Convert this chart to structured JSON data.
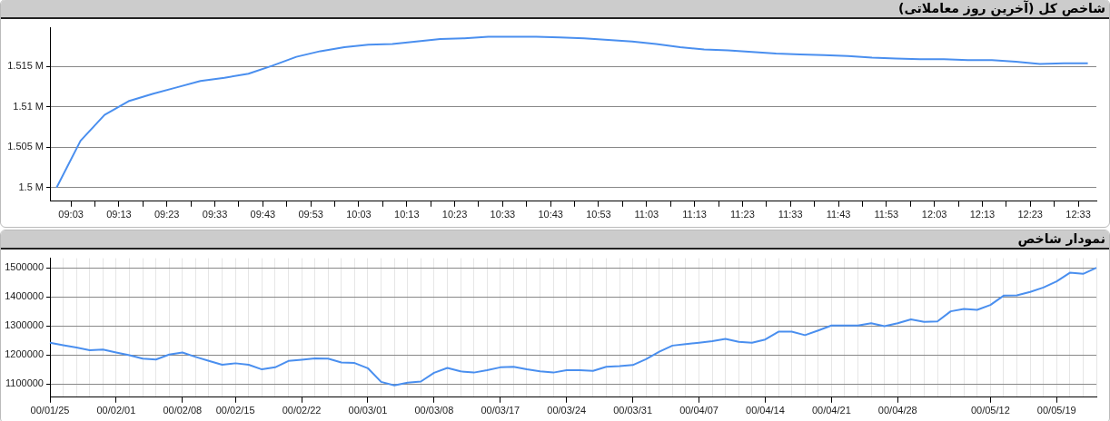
{
  "chart_data": [
    {
      "type": "line",
      "title": "شاخص کل (آخرین روز معاملاتی)",
      "grid": "y",
      "legend": false,
      "x": [
        9,
        9.0833,
        9.1667,
        9.25,
        9.3333,
        9.4167,
        9.5,
        9.5833,
        9.6667,
        9.75,
        9.8333,
        9.9167,
        10,
        10.0833,
        10.1667,
        10.25,
        10.3333,
        10.4167,
        10.5,
        10.5833,
        10.6667,
        10.75,
        10.8333,
        10.9167,
        11,
        11.0833,
        11.1667,
        11.25,
        11.3333,
        11.4167,
        11.5,
        11.5833,
        11.6667,
        11.75,
        11.8333,
        11.9167,
        12,
        12.0833,
        12.1667,
        12.25,
        12.3333,
        12.4167,
        12.5,
        12.5833
      ],
      "series": [
        {
          "color": "#4a8fef",
          "values": [
            1500000,
            1505800,
            1509000,
            1510700,
            1511600,
            1512400,
            1513200,
            1513600,
            1514100,
            1515100,
            1516200,
            1516900,
            1517400,
            1517700,
            1517800,
            1518100,
            1518400,
            1518500,
            1518700,
            1518700,
            1518700,
            1518600,
            1518500,
            1518300,
            1518100,
            1517800,
            1517400,
            1517100,
            1517000,
            1516800,
            1516600,
            1516500,
            1516400,
            1516300,
            1516100,
            1516000,
            1515900,
            1515900,
            1515800,
            1515800,
            1515600,
            1515300,
            1515400,
            1515400
          ]
        }
      ],
      "xlim": [
        8.977,
        12.613
      ],
      "xticks": [
        {
          "value": 9.05,
          "label": "09:03"
        },
        {
          "value": 9.1333,
          "label": null
        },
        {
          "value": 9.2167,
          "label": "09:13"
        },
        {
          "value": 9.3,
          "label": null
        },
        {
          "value": 9.3833,
          "label": "09:23"
        },
        {
          "value": 9.4667,
          "label": null
        },
        {
          "value": 9.55,
          "label": "09:33"
        },
        {
          "value": 9.6333,
          "label": null
        },
        {
          "value": 9.7167,
          "label": "09:43"
        },
        {
          "value": 9.8,
          "label": null
        },
        {
          "value": 9.8833,
          "label": "09:53"
        },
        {
          "value": 9.9667,
          "label": null
        },
        {
          "value": 10.05,
          "label": "10:03"
        },
        {
          "value": 10.1333,
          "label": null
        },
        {
          "value": 10.2167,
          "label": "10:13"
        },
        {
          "value": 10.3,
          "label": null
        },
        {
          "value": 10.3833,
          "label": "10:23"
        },
        {
          "value": 10.4667,
          "label": null
        },
        {
          "value": 10.55,
          "label": "10:33"
        },
        {
          "value": 10.6333,
          "label": null
        },
        {
          "value": 10.7167,
          "label": "10:43"
        },
        {
          "value": 10.8,
          "label": null
        },
        {
          "value": 10.8833,
          "label": "10:53"
        },
        {
          "value": 10.9667,
          "label": null
        },
        {
          "value": 11.05,
          "label": "11:03"
        },
        {
          "value": 11.1333,
          "label": null
        },
        {
          "value": 11.2167,
          "label": "11:13"
        },
        {
          "value": 11.3,
          "label": null
        },
        {
          "value": 11.3833,
          "label": "11:23"
        },
        {
          "value": 11.4667,
          "label": null
        },
        {
          "value": 11.55,
          "label": "11:33"
        },
        {
          "value": 11.6333,
          "label": null
        },
        {
          "value": 11.7167,
          "label": "11:43"
        },
        {
          "value": 11.8,
          "label": null
        },
        {
          "value": 11.8833,
          "label": "11:53"
        },
        {
          "value": 11.9667,
          "label": null
        },
        {
          "value": 12.05,
          "label": "12:03"
        },
        {
          "value": 12.1333,
          "label": null
        },
        {
          "value": 12.2167,
          "label": "12:13"
        },
        {
          "value": 12.3,
          "label": null
        },
        {
          "value": 12.3833,
          "label": "12:23"
        },
        {
          "value": 12.4667,
          "label": null
        },
        {
          "value": 12.55,
          "label": "12:33"
        }
      ],
      "ylim": [
        1498300,
        1519800
      ],
      "yticks": [
        {
          "value": 1500000,
          "label": "1.5 M"
        },
        {
          "value": 1505000,
          "label": "1.505 M"
        },
        {
          "value": 1510000,
          "label": "1.51 M"
        },
        {
          "value": 1515000,
          "label": "1.515 M"
        }
      ]
    },
    {
      "type": "line",
      "title": "نمودار شاخص",
      "grid": true,
      "legend": false,
      "categories": [
        "00/01/25",
        null,
        null,
        null,
        null,
        "00/02/01",
        null,
        null,
        null,
        null,
        "00/02/08",
        null,
        null,
        null,
        "00/02/15",
        null,
        null,
        null,
        null,
        "00/02/22",
        null,
        null,
        null,
        null,
        "00/03/01",
        null,
        null,
        null,
        null,
        "00/03/08",
        null,
        null,
        null,
        null,
        "00/03/17",
        null,
        null,
        null,
        null,
        "00/03/24",
        null,
        null,
        null,
        null,
        "00/03/31",
        null,
        null,
        null,
        null,
        "00/04/07",
        null,
        null,
        null,
        null,
        "00/04/14",
        null,
        null,
        null,
        null,
        "00/04/21",
        null,
        null,
        null,
        null,
        "00/04/28",
        null,
        null,
        null,
        null,
        null,
        null,
        "00/05/12",
        null,
        null,
        null,
        null,
        "00/05/19",
        null,
        null,
        null
      ],
      "series": [
        {
          "color": "#4a8fef",
          "values": [
            1242000,
            1233000,
            1225000,
            1216000,
            1218000,
            1208000,
            1199000,
            1187000,
            1184000,
            1201000,
            1208000,
            1193000,
            1179000,
            1166000,
            1171000,
            1166000,
            1150000,
            1157000,
            1179000,
            1183000,
            1188000,
            1187000,
            1174000,
            1172000,
            1154000,
            1107000,
            1095000,
            1104000,
            1108000,
            1138000,
            1155000,
            1143000,
            1139000,
            1147000,
            1157000,
            1159000,
            1150000,
            1143000,
            1139000,
            1147000,
            1147000,
            1145000,
            1159000,
            1161000,
            1165000,
            1185000,
            1211000,
            1232000,
            1237000,
            1242000,
            1247000,
            1255000,
            1245000,
            1242000,
            1253000,
            1280000,
            1280000,
            1268000,
            1284000,
            1301000,
            1301000,
            1301000,
            1309000,
            1299000,
            1309000,
            1322000,
            1314000,
            1315000,
            1350000,
            1358000,
            1355000,
            1372000,
            1404000,
            1405000,
            1417000,
            1432000,
            1453000,
            1483000,
            1479000,
            1500000
          ]
        }
      ],
      "ylim": [
        1054000,
        1533000
      ],
      "yticks": [
        1100000,
        1200000,
        1300000,
        1400000,
        1500000
      ]
    }
  ]
}
